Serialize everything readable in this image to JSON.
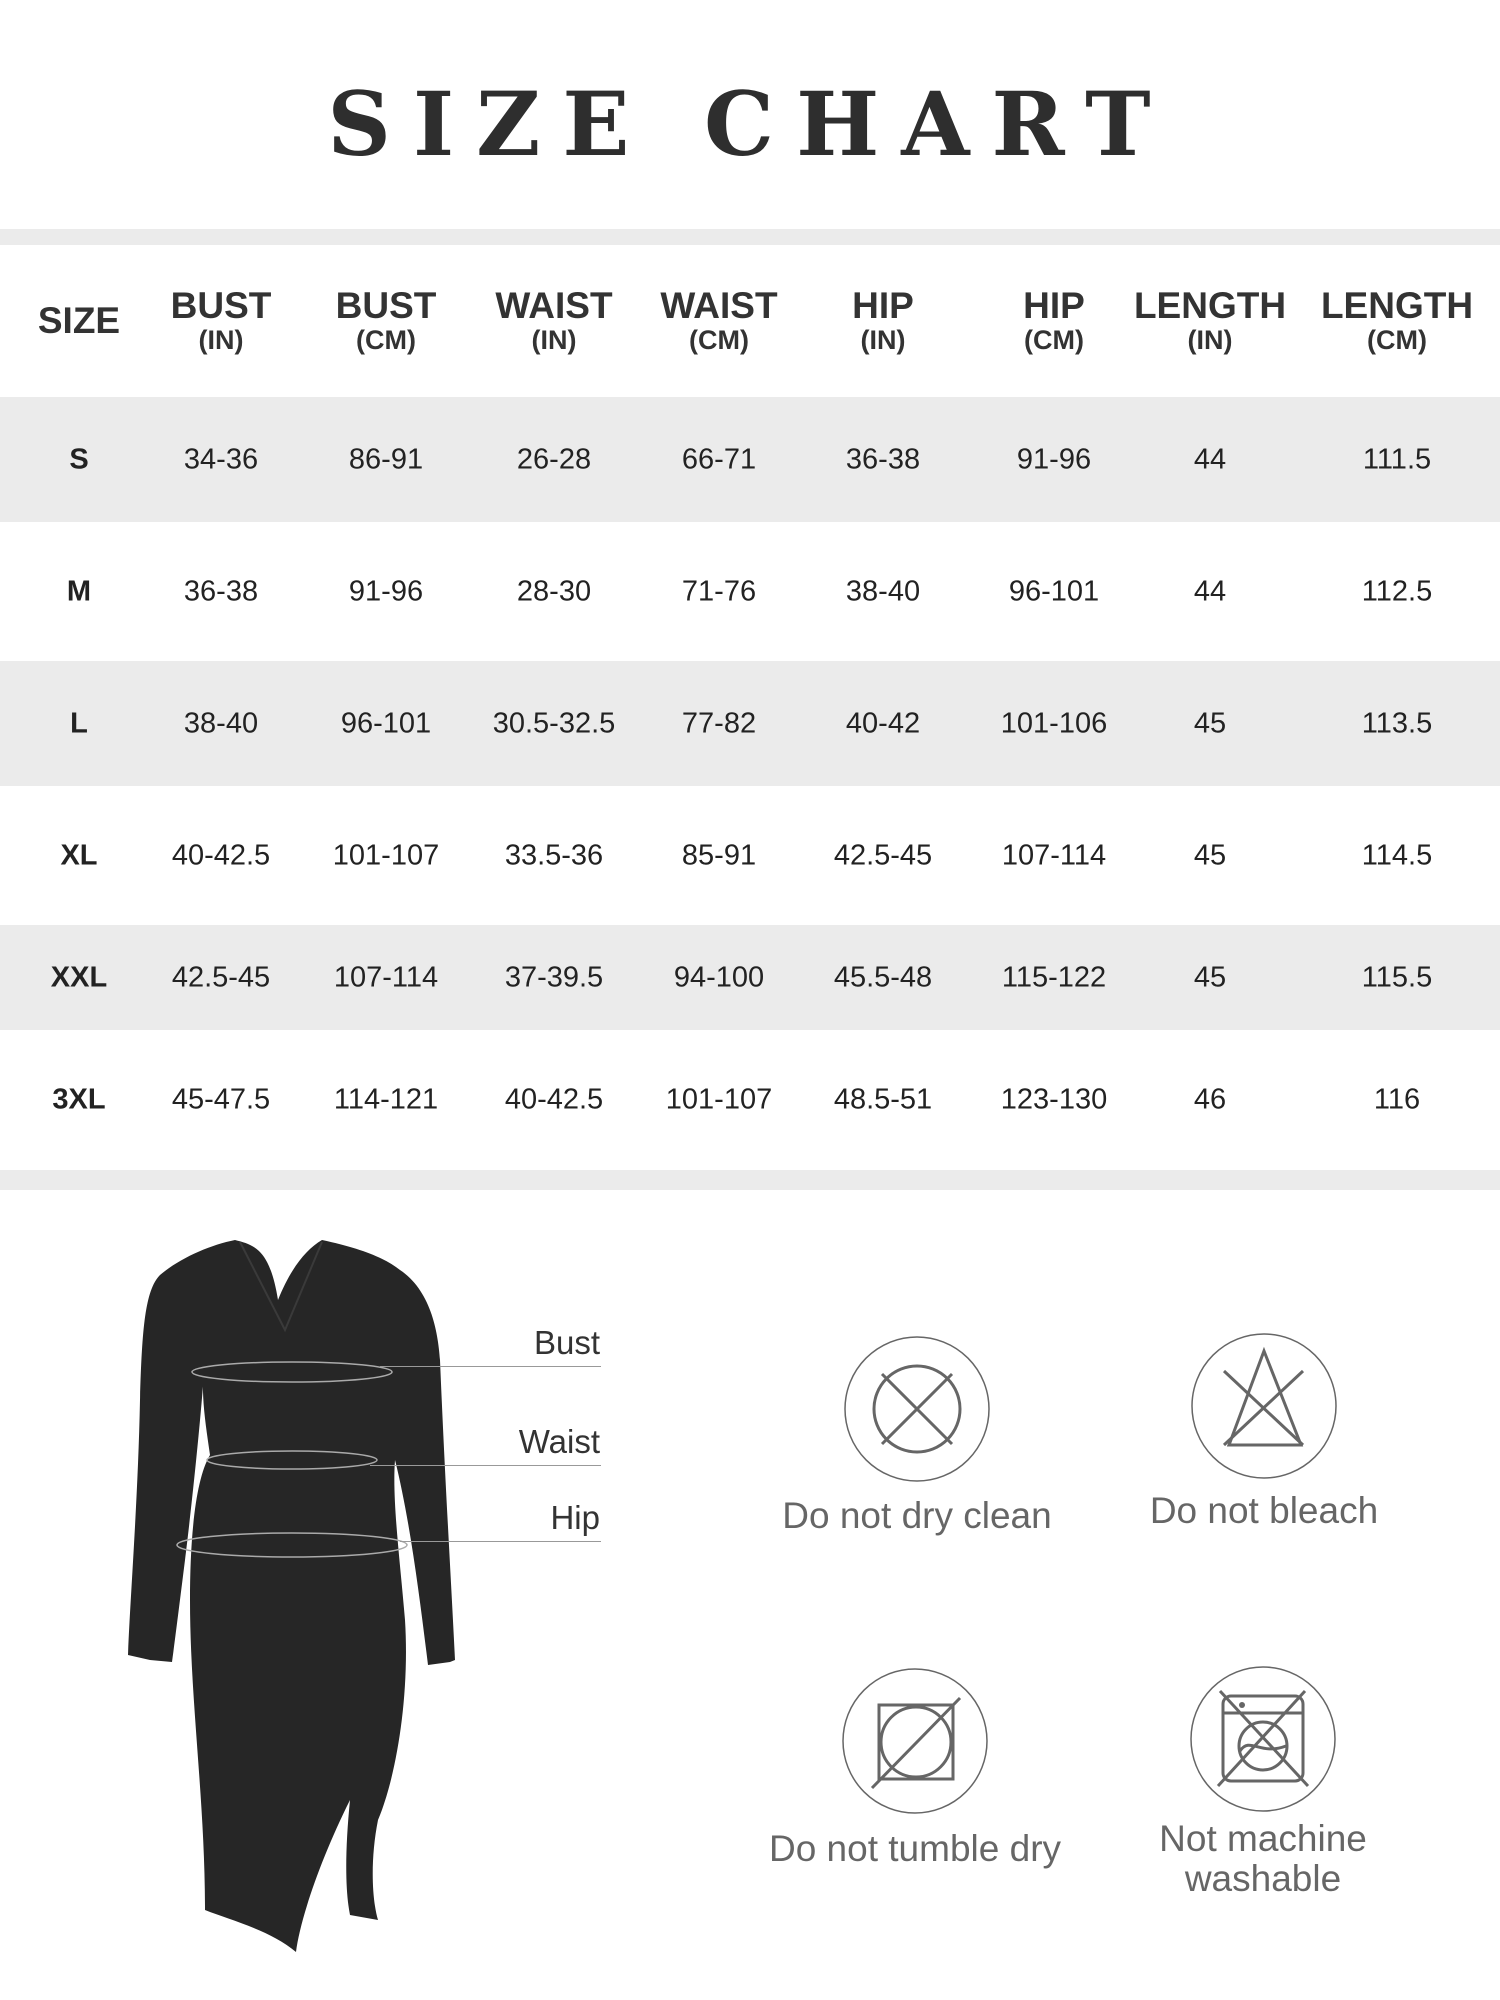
{
  "title": "SIZE CHART",
  "table": {
    "headers": [
      {
        "label": "SIZE",
        "unit": ""
      },
      {
        "label": "BUST",
        "unit": "(IN)"
      },
      {
        "label": "BUST",
        "unit": "(CM)"
      },
      {
        "label": "WAIST",
        "unit": "(IN)"
      },
      {
        "label": "WAIST",
        "unit": "(CM)"
      },
      {
        "label": "HIP",
        "unit": "(IN)"
      },
      {
        "label": "HIP",
        "unit": "(CM)"
      },
      {
        "label": "LENGTH",
        "unit": "(IN)"
      },
      {
        "label": "LENGTH",
        "unit": "(CM)"
      }
    ],
    "rows": [
      [
        "S",
        "34-36",
        "86-91",
        "26-28",
        "66-71",
        "36-38",
        "91-96",
        "44",
        "111.5"
      ],
      [
        "M",
        "36-38",
        "91-96",
        "28-30",
        "71-76",
        "38-40",
        "96-101",
        "44",
        "112.5"
      ],
      [
        "L",
        "38-40",
        "96-101",
        "30.5-32.5",
        "77-82",
        "40-42",
        "101-106",
        "45",
        "113.5"
      ],
      [
        "XL",
        "40-42.5",
        "101-107",
        "33.5-36",
        "85-91",
        "42.5-45",
        "107-114",
        "45",
        "114.5"
      ],
      [
        "XXL",
        "42.5-45",
        "107-114",
        "37-39.5",
        "94-100",
        "45.5-48",
        "115-122",
        "45",
        "115.5"
      ],
      [
        "3XL",
        "45-47.5",
        "114-121",
        "40-42.5",
        "101-107",
        "48.5-51",
        "123-130",
        "46",
        "116"
      ]
    ]
  },
  "measurements": {
    "bust": "Bust",
    "waist": "Waist",
    "hip": "Hip"
  },
  "care": [
    {
      "icon": "no-dry-clean-icon",
      "label": "Do not dry clean"
    },
    {
      "icon": "no-bleach-icon",
      "label": "Do not bleach"
    },
    {
      "icon": "no-tumble-dry-icon",
      "label": "Do not tumble dry"
    },
    {
      "icon": "no-machine-wash-icon",
      "label": "Not machine washable"
    }
  ],
  "colors": {
    "row_stripe": "#ebebeb",
    "text": "#333333",
    "care_text": "#666666",
    "dress": "#262626"
  }
}
